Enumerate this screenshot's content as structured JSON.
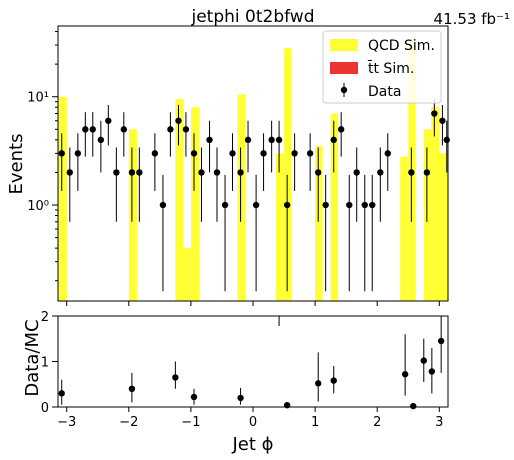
{
  "title": "jetphi  0t2bfwd",
  "lumi": "41.53 fb⁻¹",
  "legend": [
    {
      "label": "QCD Sim.",
      "color": "#ffff33",
      "kind": "box"
    },
    {
      "label": "t̄t Sim.",
      "color": "#ee3333",
      "kind": "box"
    },
    {
      "label": "Data",
      "color": "#000000",
      "kind": "point"
    }
  ],
  "chart_data": [
    {
      "type": "bar",
      "panel": "main",
      "ylabel": "Events",
      "yscale": "log",
      "ylim": [
        0.13,
        45
      ],
      "xlim": [
        -3.14,
        3.14
      ],
      "yticks": [
        {
          "v": 1,
          "label": "10⁰"
        },
        {
          "v": 10,
          "label": "10¹"
        }
      ],
      "qcd_bins": [
        {
          "x0": -3.14,
          "x1": -3.0,
          "y": 10
        },
        {
          "x0": -2.0,
          "x1": -1.87,
          "y": 5
        },
        {
          "x0": -1.25,
          "x1": -1.12,
          "y": 9.5
        },
        {
          "x0": -1.12,
          "x1": -1.0,
          "y": 0.4
        },
        {
          "x0": -1.0,
          "x1": -0.87,
          "y": 8
        },
        {
          "x0": -0.25,
          "x1": -0.12,
          "y": 10.5
        },
        {
          "x0": 0.37,
          "x1": 0.5,
          "y": 3
        },
        {
          "x0": 0.5,
          "x1": 0.62,
          "y": 28
        },
        {
          "x0": 1.0,
          "x1": 1.12,
          "y": 3.5
        },
        {
          "x0": 1.25,
          "x1": 1.37,
          "y": 7
        },
        {
          "x0": 2.37,
          "x1": 2.5,
          "y": 2.8
        },
        {
          "x0": 2.5,
          "x1": 2.62,
          "y": 32
        },
        {
          "x0": 2.75,
          "x1": 2.87,
          "y": 5
        },
        {
          "x0": 2.87,
          "x1": 3.0,
          "y": 8
        },
        {
          "x0": 3.0,
          "x1": 3.14,
          "y": 3
        }
      ],
      "data_points": [
        {
          "x": -3.08,
          "y": 3,
          "lo": 1.35,
          "hi": 4.6
        },
        {
          "x": -2.95,
          "y": 2,
          "lo": 0.7,
          "hi": 3.4
        },
        {
          "x": -2.82,
          "y": 3,
          "lo": 1.35,
          "hi": 4.6
        },
        {
          "x": -2.7,
          "y": 5,
          "lo": 2.8,
          "hi": 7.2
        },
        {
          "x": -2.58,
          "y": 5,
          "lo": 2.8,
          "hi": 7.2
        },
        {
          "x": -2.45,
          "y": 4,
          "lo": 2.0,
          "hi": 6.0
        },
        {
          "x": -2.33,
          "y": 6,
          "lo": 3.55,
          "hi": 8.4
        },
        {
          "x": -2.2,
          "y": 2,
          "lo": 0.7,
          "hi": 3.4
        },
        {
          "x": -2.08,
          "y": 5,
          "lo": 2.8,
          "hi": 7.2
        },
        {
          "x": -1.95,
          "y": 2,
          "lo": 0.7,
          "hi": 3.4
        },
        {
          "x": -1.83,
          "y": 2,
          "lo": 0.7,
          "hi": 3.4
        },
        {
          "x": -1.58,
          "y": 3,
          "lo": 1.35,
          "hi": 4.6
        },
        {
          "x": -1.45,
          "y": 1,
          "lo": 0.16,
          "hi": 1.9
        },
        {
          "x": -1.33,
          "y": 5,
          "lo": 2.8,
          "hi": 7.2
        },
        {
          "x": -1.2,
          "y": 6,
          "lo": 3.55,
          "hi": 8.4
        },
        {
          "x": -1.08,
          "y": 5,
          "lo": 2.8,
          "hi": 7.2
        },
        {
          "x": -0.95,
          "y": 3,
          "lo": 1.35,
          "hi": 4.6
        },
        {
          "x": -0.83,
          "y": 2,
          "lo": 0.7,
          "hi": 3.4
        },
        {
          "x": -0.7,
          "y": 4,
          "lo": 2.0,
          "hi": 6.0
        },
        {
          "x": -0.58,
          "y": 2,
          "lo": 0.7,
          "hi": 3.4
        },
        {
          "x": -0.45,
          "y": 1,
          "lo": 0.16,
          "hi": 1.9
        },
        {
          "x": -0.33,
          "y": 3,
          "lo": 1.35,
          "hi": 4.6
        },
        {
          "x": -0.2,
          "y": 2,
          "lo": 0.7,
          "hi": 3.4
        },
        {
          "x": -0.08,
          "y": 4,
          "lo": 2.0,
          "hi": 6.0
        },
        {
          "x": 0.05,
          "y": 1,
          "lo": 0.16,
          "hi": 1.9
        },
        {
          "x": 0.17,
          "y": 3,
          "lo": 1.35,
          "hi": 4.6
        },
        {
          "x": 0.3,
          "y": 4,
          "lo": 2.0,
          "hi": 6.0
        },
        {
          "x": 0.42,
          "y": 4,
          "lo": 2.0,
          "hi": 6.0
        },
        {
          "x": 0.55,
          "y": 1,
          "lo": 0.16,
          "hi": 1.9
        },
        {
          "x": 0.67,
          "y": 3,
          "lo": 1.35,
          "hi": 4.6
        },
        {
          "x": 0.92,
          "y": 3,
          "lo": 1.35,
          "hi": 4.6
        },
        {
          "x": 1.05,
          "y": 2,
          "lo": 0.7,
          "hi": 3.4
        },
        {
          "x": 1.17,
          "y": 1,
          "lo": 0.16,
          "hi": 1.9
        },
        {
          "x": 1.3,
          "y": 4,
          "lo": 2.0,
          "hi": 6.0
        },
        {
          "x": 1.42,
          "y": 5,
          "lo": 2.8,
          "hi": 7.2
        },
        {
          "x": 1.55,
          "y": 1,
          "lo": 0.16,
          "hi": 1.9
        },
        {
          "x": 1.67,
          "y": 2,
          "lo": 0.7,
          "hi": 3.4
        },
        {
          "x": 1.8,
          "y": 1,
          "lo": 0.16,
          "hi": 1.9
        },
        {
          "x": 1.92,
          "y": 1,
          "lo": 0.16,
          "hi": 1.9
        },
        {
          "x": 2.05,
          "y": 2,
          "lo": 0.7,
          "hi": 3.4
        },
        {
          "x": 2.17,
          "y": 3,
          "lo": 1.35,
          "hi": 4.6
        },
        {
          "x": 2.55,
          "y": 2,
          "lo": 0.7,
          "hi": 3.4
        },
        {
          "x": 2.8,
          "y": 2,
          "lo": 0.7,
          "hi": 3.4
        },
        {
          "x": 2.92,
          "y": 7,
          "lo": 4.3,
          "hi": 9.6
        },
        {
          "x": 3.05,
          "y": 6,
          "lo": 3.55,
          "hi": 8.4
        },
        {
          "x": 3.12,
          "y": 4,
          "lo": 2.0,
          "hi": 6.0
        }
      ]
    },
    {
      "type": "scatter",
      "panel": "ratio",
      "xlabel": "Jet ϕ",
      "ylabel": "Data/MC",
      "ylim": [
        0,
        2
      ],
      "xlim": [
        -3.14,
        3.14
      ],
      "xticks": [
        -3,
        -2,
        -1,
        0,
        1,
        2,
        3
      ],
      "yticks": [
        0,
        1,
        2
      ],
      "points": [
        {
          "x": -3.08,
          "y": 0.3,
          "lo": 0.05,
          "hi": 0.6
        },
        {
          "x": -1.95,
          "y": 0.4,
          "lo": 0.1,
          "hi": 0.75
        },
        {
          "x": -1.25,
          "y": 0.65,
          "lo": 0.4,
          "hi": 1.0
        },
        {
          "x": -0.95,
          "y": 0.22,
          "lo": 0.05,
          "hi": 0.4
        },
        {
          "x": -0.2,
          "y": 0.2,
          "lo": 0.05,
          "hi": 0.42
        },
        {
          "x": 0.55,
          "y": 0.04,
          "lo": 0.0,
          "hi": 0.1
        },
        {
          "x": 1.05,
          "y": 0.52,
          "lo": 0.12,
          "hi": 1.2
        },
        {
          "x": 1.3,
          "y": 0.58,
          "lo": 0.3,
          "hi": 0.9
        },
        {
          "x": 2.45,
          "y": 0.72,
          "lo": 0.25,
          "hi": 1.6
        },
        {
          "x": 2.58,
          "y": 0.02,
          "lo": 0.0,
          "hi": 0.05
        },
        {
          "x": 2.75,
          "y": 1.02,
          "lo": 0.55,
          "hi": 1.5
        },
        {
          "x": 2.88,
          "y": 0.78,
          "lo": 0.3,
          "hi": 1.3
        },
        {
          "x": 3.03,
          "y": 1.45,
          "lo": 0.75,
          "hi": 2.0
        }
      ],
      "clipped_markers_x": [
        0.42
      ]
    }
  ]
}
